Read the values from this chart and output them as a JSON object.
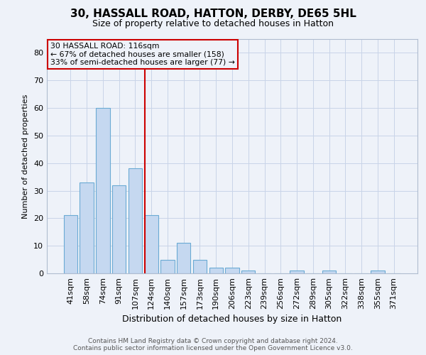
{
  "title": "30, HASSALL ROAD, HATTON, DERBY, DE65 5HL",
  "subtitle": "Size of property relative to detached houses in Hatton",
  "xlabel": "Distribution of detached houses by size in Hatton",
  "ylabel": "Number of detached properties",
  "categories": [
    "41sqm",
    "58sqm",
    "74sqm",
    "91sqm",
    "107sqm",
    "124sqm",
    "140sqm",
    "157sqm",
    "173sqm",
    "190sqm",
    "206sqm",
    "223sqm",
    "239sqm",
    "256sqm",
    "272sqm",
    "289sqm",
    "305sqm",
    "322sqm",
    "338sqm",
    "355sqm",
    "371sqm"
  ],
  "values": [
    21,
    33,
    60,
    32,
    38,
    21,
    5,
    11,
    5,
    2,
    2,
    1,
    0,
    0,
    1,
    0,
    1,
    0,
    0,
    1,
    0
  ],
  "bar_color": "#c5d8f0",
  "bar_edge_color": "#6aaad4",
  "marker_index": 5,
  "marker_line_color": "#cc0000",
  "annotation_line1": "30 HASSALL ROAD: 116sqm",
  "annotation_line2": "← 67% of detached houses are smaller (158)",
  "annotation_line3": "33% of semi-detached houses are larger (77) →",
  "annotation_box_color": "#cc0000",
  "ylim": [
    0,
    85
  ],
  "yticks": [
    0,
    10,
    20,
    30,
    40,
    50,
    60,
    70,
    80
  ],
  "footer_line1": "Contains HM Land Registry data © Crown copyright and database right 2024.",
  "footer_line2": "Contains public sector information licensed under the Open Government Licence v3.0.",
  "bg_color": "#eef2f9",
  "grid_color": "#c8d4e8",
  "title_fontsize": 11,
  "subtitle_fontsize": 9,
  "ylabel_fontsize": 8,
  "xlabel_fontsize": 9,
  "tick_fontsize": 8,
  "footer_fontsize": 6.5
}
